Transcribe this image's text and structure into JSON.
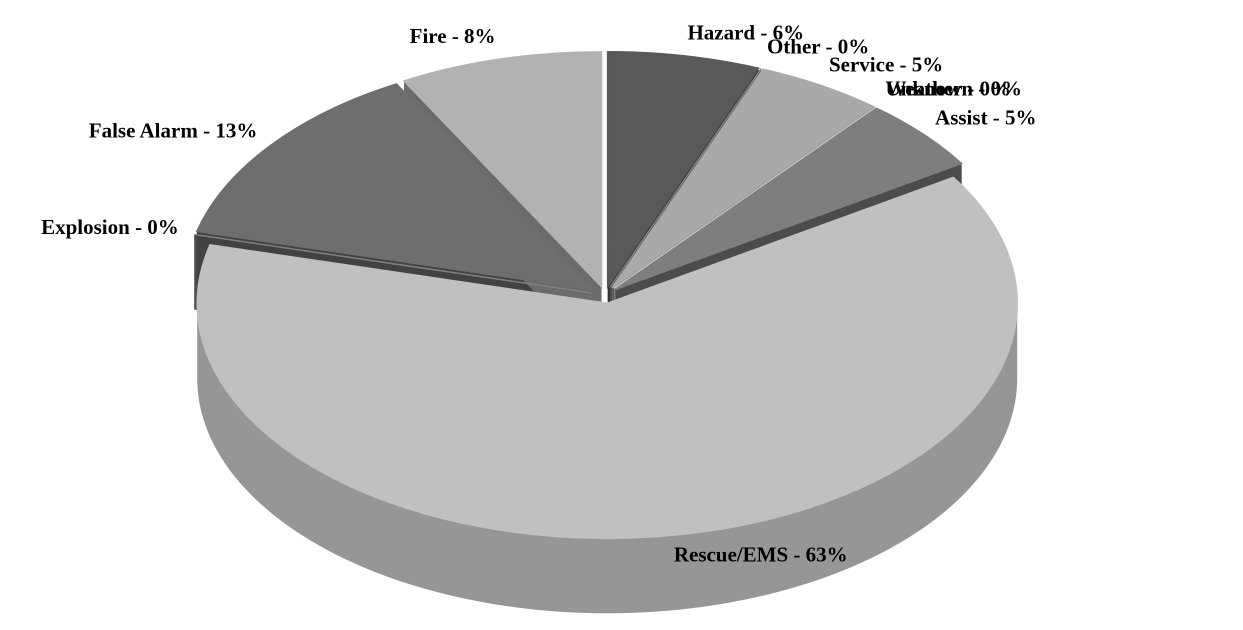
{
  "chart_data": {
    "type": "pie",
    "values": [
      6,
      0,
      5,
      0,
      0,
      5,
      63,
      0,
      13,
      8
    ],
    "value_labels": [
      "Hazard - 6%",
      "Other - 0%",
      "Service - 5%",
      "Unknown - 0%",
      "Weather - 0%",
      "Assist - 5%",
      "Rescue/EMS - 63%",
      "Explosion - 0%",
      "False Alarm - 13%",
      "Fire - 8%"
    ],
    "colors": [
      "#58595b",
      "#808080",
      "#a7a9ab",
      "#000000",
      "#c8c9ca",
      "#7d7e80",
      "#bfc0c2",
      "#808080",
      "#6d6e70",
      "#b1b2b4"
    ]
  }
}
